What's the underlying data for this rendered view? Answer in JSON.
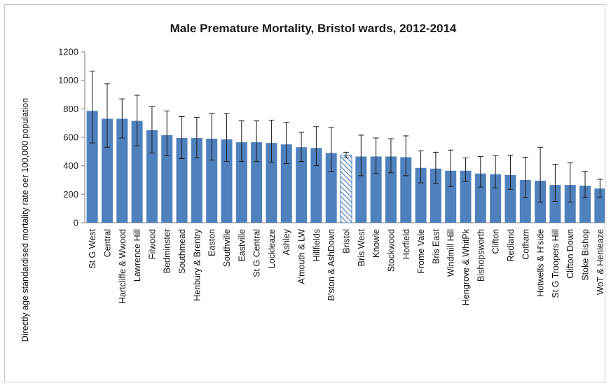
{
  "chart_data": {
    "type": "bar",
    "title": "Male Premature  Mortality, Bristol wards, 2012-2014",
    "xlabel": "",
    "ylabel": "Directly age standardised mortality rate oer 100,000 population",
    "ylim": [
      0,
      1200
    ],
    "yticks": [
      0,
      200,
      400,
      600,
      800,
      1000,
      1200
    ],
    "grid": false,
    "legend": "none",
    "colors": {
      "bar": "#4f81bd",
      "highlight_hatch": "#4f81bd",
      "error_bar": "#1a1a1a"
    },
    "highlight_category": "Bristol",
    "categories": [
      "St G West",
      "Central",
      "Hartcliffe & Wwood",
      "Lawrence Hill",
      "Filwood",
      "Bedminster",
      "Southmead",
      "Henbury & Brentry",
      "Easton",
      "Southville",
      "Eastville",
      "St G Central",
      "Lockleaze",
      "Ashley",
      "A'mouth & LW",
      "Hillfields",
      "B'ston & AshDown",
      "Bristol",
      "Bris West",
      "Knowle",
      "Stockwood",
      "Horfield",
      "Frome Vale",
      "Bris East",
      "Windmill Hill",
      "Hengrove & WhitPk",
      "Bishopsworth",
      "Clifton",
      "Redland",
      "Cotham",
      "Hotwells & H'side",
      "St G Troopers Hill",
      "Clifton Down",
      "Stoke Bishop",
      "WoT & Henleaze"
    ],
    "values": [
      785,
      730,
      730,
      715,
      650,
      615,
      595,
      595,
      590,
      585,
      565,
      565,
      560,
      550,
      530,
      525,
      490,
      475,
      465,
      465,
      465,
      460,
      385,
      380,
      365,
      365,
      345,
      340,
      335,
      300,
      295,
      265,
      265,
      260,
      240
    ],
    "ci_lower": [
      560,
      530,
      595,
      540,
      490,
      470,
      450,
      455,
      440,
      430,
      430,
      430,
      425,
      415,
      430,
      400,
      360,
      455,
      330,
      345,
      350,
      330,
      280,
      275,
      255,
      290,
      250,
      245,
      235,
      175,
      145,
      150,
      145,
      175,
      180
    ],
    "ci_upper": [
      1065,
      975,
      870,
      895,
      815,
      785,
      745,
      740,
      765,
      765,
      715,
      715,
      720,
      705,
      635,
      675,
      670,
      495,
      615,
      595,
      590,
      610,
      505,
      495,
      510,
      455,
      465,
      470,
      475,
      460,
      530,
      410,
      420,
      360,
      305
    ]
  }
}
